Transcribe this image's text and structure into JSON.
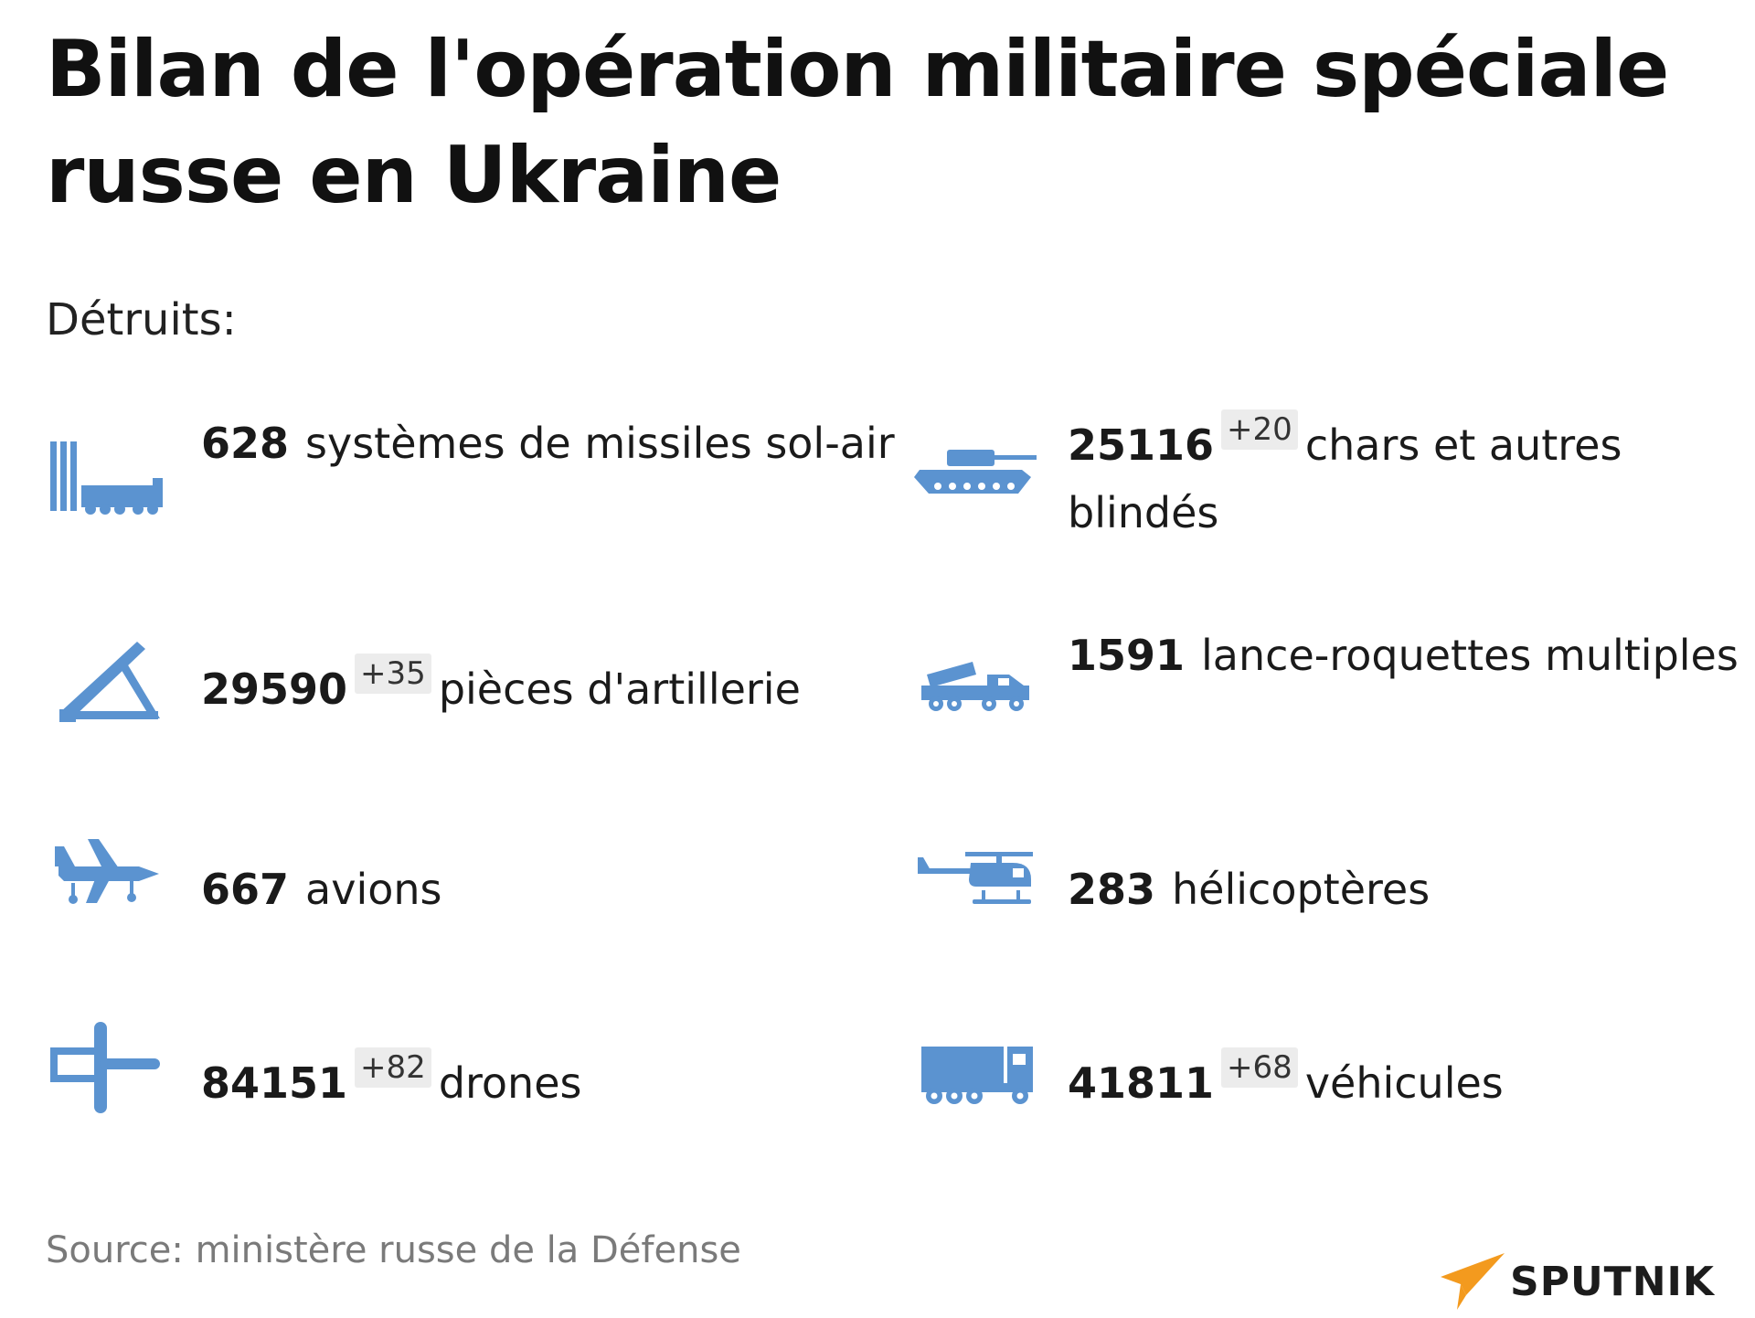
{
  "title": "Bilan de l'opération militaire spéciale russe en Ukraine",
  "subtitle": "Détruits:",
  "colors": {
    "icon": "#5b93d0",
    "delta_bg": "#ececec",
    "logo_accent": "#f39a1e"
  },
  "items": [
    {
      "icon": "sam-launcher-icon",
      "value": "628",
      "delta": "",
      "label": "systèmes de missiles sol-air"
    },
    {
      "icon": "tank-icon",
      "value": "25116",
      "delta": "+20",
      "label": "chars et autres blindés"
    },
    {
      "icon": "artillery-icon",
      "value": "29590",
      "delta": "+35",
      "label": "pièces d'artillerie"
    },
    {
      "icon": "rocket-launcher-icon",
      "value": "1591",
      "delta": "",
      "label": "lance-roquettes multiples"
    },
    {
      "icon": "plane-icon",
      "value": "667",
      "delta": "",
      "label": "avions"
    },
    {
      "icon": "helicopter-icon",
      "value": "283",
      "delta": "",
      "label": "hélicoptères"
    },
    {
      "icon": "drone-icon",
      "value": "84151",
      "delta": "+82",
      "label": "drones"
    },
    {
      "icon": "truck-icon",
      "value": "41811",
      "delta": "+68",
      "label": "véhicules"
    }
  ],
  "source": "Source: ministère russe de la Défense",
  "logo": "SPUTNIK"
}
